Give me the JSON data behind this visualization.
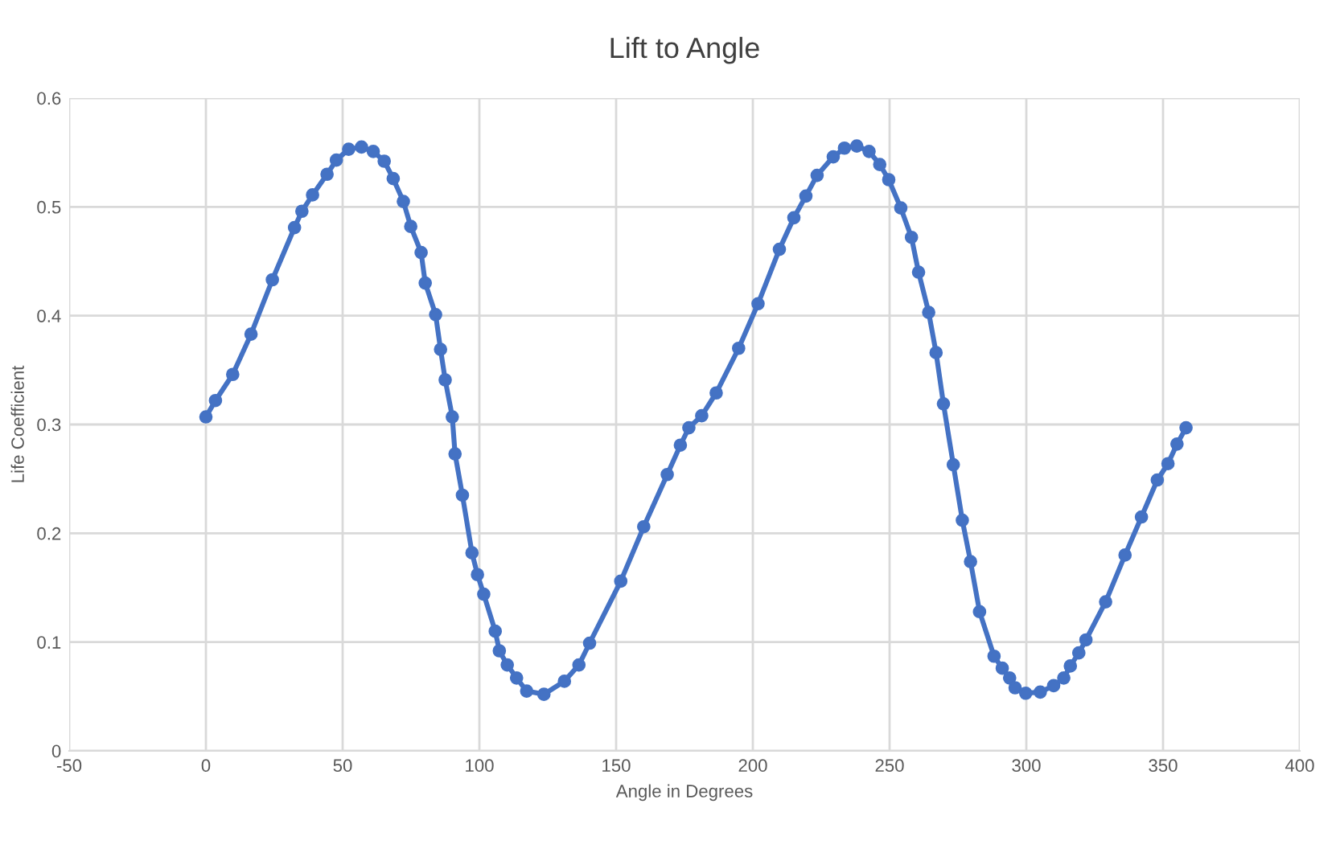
{
  "chart_data": {
    "type": "line",
    "title": "Lift to Angle",
    "xlabel": "Angle in Degrees",
    "ylabel": "Life Coefficient",
    "series": [
      {
        "color": "#4472c4",
        "marker": "circle",
        "x": [
          0,
          3.5,
          9.8,
          16.5,
          24.3,
          32.4,
          35.1,
          39.0,
          44.3,
          47.7,
          52.2,
          56.9,
          61.2,
          65.2,
          68.5,
          72.2,
          74.9,
          78.7,
          80.2,
          84.0,
          85.8,
          87.5,
          90.1,
          91.1,
          93.8,
          97.3,
          99.3,
          101.6,
          105.8,
          107.3,
          110.2,
          113.6,
          117.3,
          123.6,
          131.1,
          136.4,
          140.3,
          151.7,
          160.1,
          168.7,
          173.5,
          176.6,
          181.3,
          186.6,
          194.8,
          201.9,
          209.7,
          215.0,
          219.4,
          223.5,
          229.4,
          233.5,
          238.0,
          242.5,
          246.4,
          249.7,
          254.1,
          258.0,
          260.6,
          264.3,
          267.0,
          269.7,
          273.3,
          276.6,
          279.6,
          282.9,
          288.2,
          291.2,
          293.9,
          295.9,
          299.8,
          305.1,
          310.0,
          313.7,
          316.1,
          319.2,
          321.8,
          329.0,
          336.1,
          342.1,
          347.9,
          351.8,
          355.1,
          358.4
        ],
        "values": [
          0.307,
          0.322,
          0.346,
          0.383,
          0.433,
          0.481,
          0.496,
          0.511,
          0.53,
          0.543,
          0.553,
          0.555,
          0.551,
          0.542,
          0.526,
          0.505,
          0.482,
          0.458,
          0.43,
          0.401,
          0.369,
          0.341,
          0.307,
          0.273,
          0.235,
          0.182,
          0.162,
          0.144,
          0.11,
          0.092,
          0.079,
          0.067,
          0.055,
          0.052,
          0.064,
          0.079,
          0.099,
          0.156,
          0.206,
          0.254,
          0.281,
          0.297,
          0.308,
          0.329,
          0.37,
          0.411,
          0.461,
          0.49,
          0.51,
          0.529,
          0.546,
          0.554,
          0.556,
          0.551,
          0.539,
          0.525,
          0.499,
          0.472,
          0.44,
          0.403,
          0.366,
          0.319,
          0.263,
          0.212,
          0.174,
          0.128,
          0.087,
          0.076,
          0.067,
          0.058,
          0.053,
          0.054,
          0.06,
          0.067,
          0.078,
          0.09,
          0.102,
          0.137,
          0.18,
          0.215,
          0.249,
          0.264,
          0.282,
          0.297
        ]
      }
    ],
    "xlim": [
      -50,
      400
    ],
    "xticks": [
      -50,
      0,
      50,
      100,
      150,
      200,
      250,
      300,
      350,
      400
    ],
    "ylim": [
      0,
      0.6
    ],
    "yticks": [
      0,
      0.1,
      0.2,
      0.3,
      0.4,
      0.5,
      0.6
    ],
    "grid": true
  }
}
